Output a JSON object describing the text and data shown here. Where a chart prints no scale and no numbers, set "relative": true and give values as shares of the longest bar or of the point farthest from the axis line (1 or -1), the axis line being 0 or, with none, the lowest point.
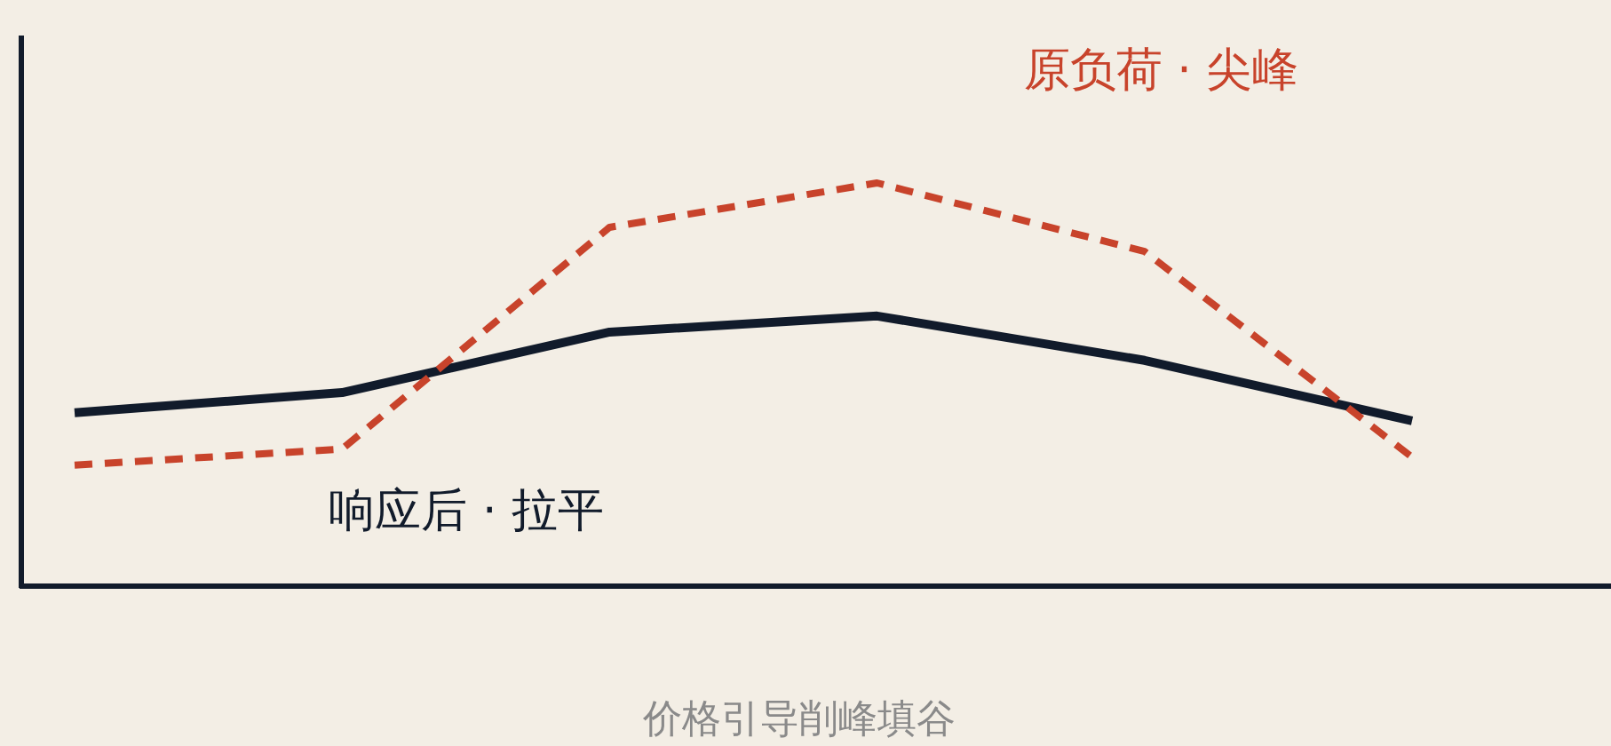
{
  "chart_data": {
    "type": "line",
    "title": "价格引导削峰填谷",
    "relative": true,
    "categories": [
      null,
      null,
      null,
      null,
      null,
      null
    ],
    "series": [
      {
        "name": "响应后 · 拉平",
        "color": "#111b2b",
        "line_style": "solid",
        "values": [
          0.43,
          0.48,
          0.63,
          0.67,
          0.56,
          0.41
        ]
      },
      {
        "name": "原负荷 · 尖峰",
        "color": "#c8432b",
        "line_style": "dashed",
        "values": [
          0.3,
          0.34,
          0.89,
          1,
          0.83,
          0.32
        ]
      }
    ]
  }
}
